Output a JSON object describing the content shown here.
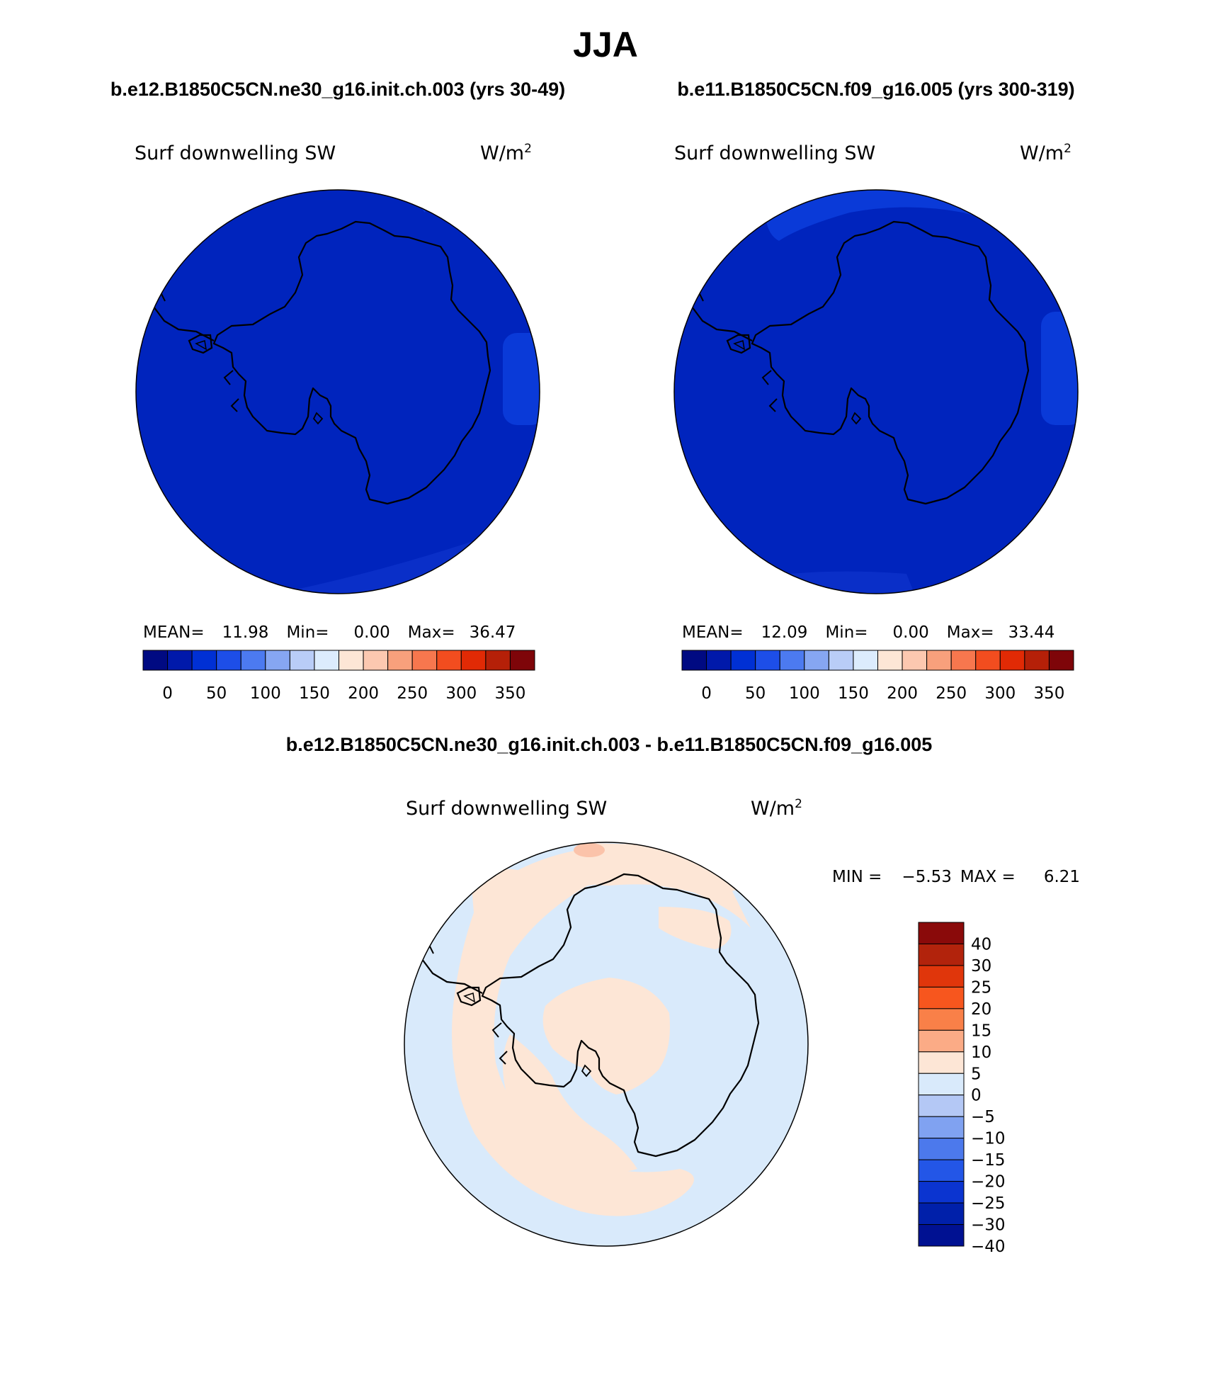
{
  "figure": {
    "season": "JJA",
    "case_a": "b.e12.B1850C5CN.ne30_g16.init.ch.003 (yrs 30-49)",
    "case_b": "b.e11.B1850C5CN.f09_g16.005 (yrs 300-319)",
    "diff_title": "b.e12.B1850C5CN.ne30_g16.init.ch.003 - b.e11.B1850C5CN.f09_g16.005"
  },
  "panels": {
    "a": {
      "variable": "Surf downwelling SW",
      "units": "W/m",
      "units_exp": "2",
      "mean_label": "MEAN=",
      "mean": "11.98",
      "min_label": "Min=",
      "min": "0.00",
      "max_label": "Max=",
      "max": "36.47"
    },
    "b": {
      "variable": "Surf downwelling SW",
      "units": "W/m",
      "units_exp": "2",
      "mean_label": "MEAN=",
      "mean": "12.09",
      "min_label": "Min=",
      "min": "0.00",
      "max_label": "Max=",
      "max": "33.44"
    },
    "diff": {
      "variable": "Surf downwelling SW",
      "units": "W/m",
      "units_exp": "2",
      "min_label": "MIN =",
      "min": "−5.53",
      "max_label": "MAX =",
      "max": "6.21"
    }
  },
  "colorbars": {
    "abs": {
      "colors": [
        "#000a82",
        "#0019aa",
        "#0030d4",
        "#1d4ee8",
        "#4c7af0",
        "#86a6f2",
        "#b9cdf7",
        "#dcecfd",
        "#fde6d6",
        "#fcc8b0",
        "#f8a07c",
        "#f7774e",
        "#f24d1f",
        "#e12a05",
        "#b52008",
        "#7e0509"
      ],
      "labels": [
        "0",
        "50",
        "100",
        "150",
        "200",
        "250",
        "300",
        "350"
      ]
    },
    "diff": {
      "colors_top_to_bottom": [
        "#8a0a0a",
        "#b2230c",
        "#e0360b",
        "#f7561e",
        "#f98048",
        "#fbab86",
        "#fde6d6",
        "#d9eafb",
        "#b4c8f5",
        "#80a2f1",
        "#4c79ec",
        "#2356e7",
        "#0b34d0",
        "#0020aa",
        "#001192"
      ],
      "labels_top_to_bottom": [
        "40",
        "30",
        "25",
        "20",
        "15",
        "10",
        "5",
        "0",
        "−5",
        "−10",
        "−15",
        "−20",
        "−25",
        "−30",
        "−40"
      ]
    }
  },
  "map_colors": {
    "deep_blue": "#0024bd",
    "mid_blue": "#0a3ad8",
    "diff_peach": "#fde6d6",
    "diff_lightblue": "#d9eafb",
    "diff_salmon": "#fbc3aa"
  }
}
